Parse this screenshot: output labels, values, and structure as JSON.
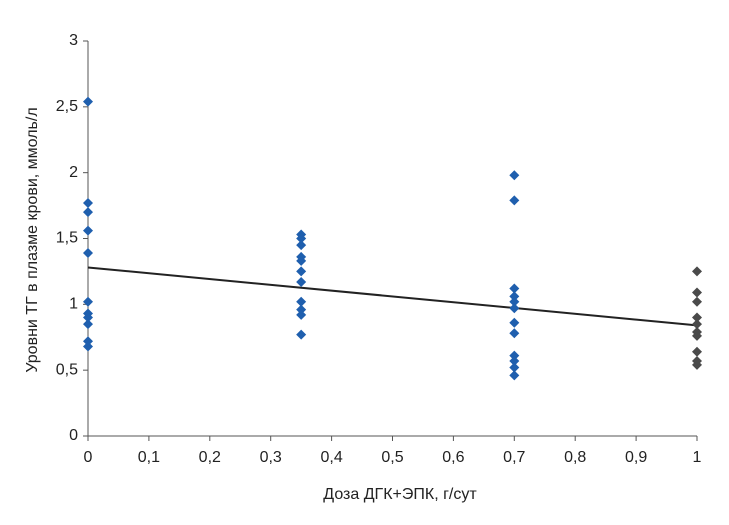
{
  "chart_data": {
    "type": "scatter",
    "xlabel": "Доза ДГК+ЭПК, г/сут",
    "ylabel": "Уровни ТГ в плазме крови, ммоль/л",
    "xlim": [
      0,
      1
    ],
    "ylim": [
      0,
      3
    ],
    "xticks": [
      0,
      {
        "value": 0.1,
        "label": "0,1"
      },
      {
        "value": 0.2,
        "label": "0,2"
      },
      {
        "value": 0.3,
        "label": "0,3"
      },
      {
        "value": 0.4,
        "label": "0,4"
      },
      {
        "value": 0.5,
        "label": "0,5"
      },
      {
        "value": 0.6,
        "label": "0,6"
      },
      {
        "value": 0.7,
        "label": "0,7"
      },
      {
        "value": 0.8,
        "label": "0,8"
      },
      {
        "value": 0.9,
        "label": "0,9"
      },
      1
    ],
    "yticks": [
      0,
      {
        "value": 0.5,
        "label": "0,5"
      },
      1,
      {
        "value": 1.5,
        "label": "1,5"
      },
      2,
      {
        "value": 2.5,
        "label": "2,5"
      },
      3
    ],
    "grid": false,
    "series": [
      {
        "color": "#1f5fae",
        "x": [
          0,
          0,
          0,
          0,
          0,
          0,
          0,
          0,
          0,
          0,
          0,
          0.35,
          0.35,
          0.35,
          0.35,
          0.35,
          0.35,
          0.35,
          0.35,
          0.35,
          0.35,
          0.35,
          0.7,
          0.7,
          0.7,
          0.7,
          0.7,
          0.7,
          0.7,
          0.7,
          0.7,
          0.7,
          0.7,
          0.7
        ],
        "values": [
          2.54,
          1.77,
          1.7,
          1.56,
          1.39,
          1.02,
          0.93,
          0.9,
          0.85,
          0.72,
          0.68,
          1.53,
          1.5,
          1.45,
          1.36,
          1.33,
          1.25,
          1.17,
          1.02,
          0.96,
          0.92,
          0.77,
          1.98,
          1.79,
          1.12,
          1.06,
          1.02,
          0.97,
          0.86,
          0.78,
          0.61,
          0.57,
          0.52,
          0.46
        ]
      },
      {
        "color": "#4a4a4a",
        "x": [
          1,
          1,
          1,
          1,
          1,
          1,
          1,
          1,
          1,
          1
        ],
        "values": [
          1.25,
          1.09,
          1.02,
          0.9,
          0.85,
          0.79,
          0.76,
          0.64,
          0.57,
          0.54
        ]
      }
    ],
    "trend": {
      "color": "#222222",
      "x": [
        0,
        1
      ],
      "values": [
        1.28,
        0.84
      ]
    }
  }
}
